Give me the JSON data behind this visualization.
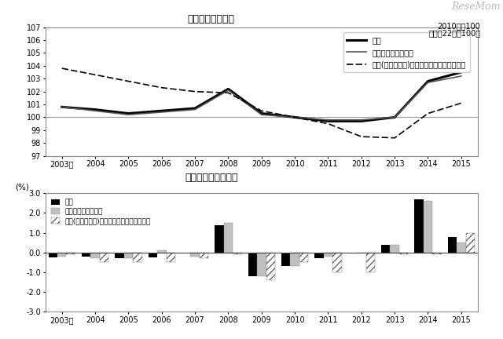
{
  "title1": "図７　指数の動き",
  "title2": "図８　前年比の動き",
  "watermark": "ReseMom",
  "subtitle_line1": "2010年＝100",
  "subtitle_line2": "（平成22年＝100）",
  "years": [
    2003,
    2004,
    2005,
    2006,
    2007,
    2008,
    2009,
    2010,
    2011,
    2012,
    2013,
    2014,
    2015
  ],
  "line1": [
    100.8,
    100.6,
    100.3,
    100.5,
    100.7,
    102.2,
    100.3,
    100.0,
    99.7,
    99.7,
    100.0,
    102.8,
    103.5
  ],
  "line2": [
    100.8,
    100.5,
    100.2,
    100.4,
    100.6,
    102.1,
    100.2,
    100.0,
    99.8,
    99.8,
    100.0,
    102.7,
    103.2
  ],
  "line3": [
    103.8,
    103.3,
    102.8,
    102.3,
    102.0,
    101.9,
    100.5,
    100.0,
    99.5,
    98.5,
    98.4,
    100.3,
    101.1
  ],
  "bar1": [
    -0.25,
    -0.2,
    -0.3,
    -0.25,
    0.0,
    1.4,
    -1.2,
    -0.7,
    -0.3,
    0.0,
    0.4,
    2.7,
    0.8
  ],
  "bar2": [
    -0.2,
    -0.3,
    -0.3,
    0.1,
    -0.2,
    1.5,
    -1.2,
    -0.7,
    -0.2,
    0.0,
    0.4,
    2.6,
    0.5
  ],
  "bar3": [
    -0.1,
    -0.5,
    -0.5,
    -0.5,
    -0.3,
    -0.1,
    -1.4,
    -0.5,
    -1.0,
    -1.0,
    -0.1,
    -0.1,
    1.0
  ],
  "ylim1": [
    97,
    107
  ],
  "ylim2": [
    -3.0,
    3.0
  ],
  "yticks1": [
    97,
    98,
    99,
    100,
    101,
    102,
    103,
    104,
    105,
    106,
    107
  ],
  "yticks2": [
    -3.0,
    -2.0,
    -1.0,
    0.0,
    1.0,
    2.0,
    3.0
  ],
  "legend1": [
    "総合",
    "生鮮食品を除く総合",
    "食料(酒類を除く)及びエネルギーを除く総合"
  ],
  "legend2": [
    "総合",
    "生鮮食品を除く総合",
    "食料(酒類を除く)及びエネルギーを除く総合"
  ],
  "ylabel2": "(%)",
  "xlabel_2003": "2003年",
  "xlabel_rest": [
    "2004",
    "2005",
    "2006",
    "2007",
    "2008",
    "2009",
    "2010",
    "2011",
    "2012",
    "2013",
    "2014",
    "2015"
  ]
}
